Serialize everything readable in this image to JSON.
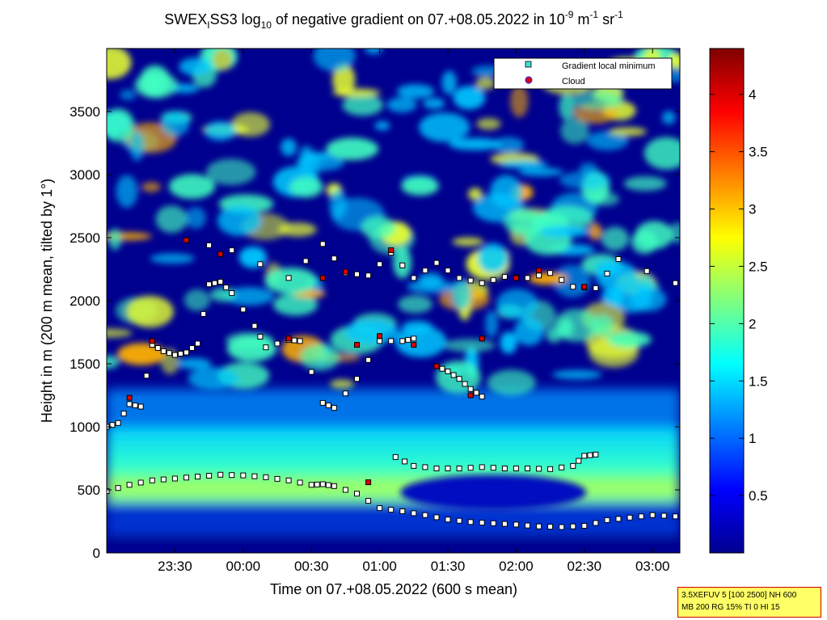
{
  "title": {
    "p1": "SWEX",
    "sub1": "I",
    "p2": "SS3 log",
    "sub2": "10",
    "p3": " of negative gradient on 07.+08.05.2022 in 10",
    "sup1": "-9",
    "p4": " m",
    "sup2": "-1",
    "p5": " sr",
    "sup3": "-1"
  },
  "xlabel": "Time on 07.+08.05.2022 (600 s mean)",
  "ylabel": "Height in m (200 m mean, tilted by 1°)",
  "legend": {
    "items": [
      {
        "label": "Gradient local minimum",
        "color": "#40e0d0"
      },
      {
        "label": "Cloud",
        "color": "#e00000"
      }
    ]
  },
  "info_box": {
    "line1": "3.5XEFUV 5 [100 2500] NH 600",
    "line2": "MB 200 RG 15% TI 0 HI 15"
  },
  "chart_data": {
    "type": "heatmap",
    "x_unit": "time (HH:MM)",
    "x_range": [
      "23:00",
      "03:12"
    ],
    "xticks": [
      {
        "label": "23:30",
        "t": "23:30"
      },
      {
        "label": "00:00",
        "t": "00:00"
      },
      {
        "label": "00:30",
        "t": "00:30"
      },
      {
        "label": "01:00",
        "t": "01:00"
      },
      {
        "label": "01:30",
        "t": "01:30"
      },
      {
        "label": "02:00",
        "t": "02:00"
      },
      {
        "label": "02:30",
        "t": "02:30"
      },
      {
        "label": "03:00",
        "t": "03:00"
      }
    ],
    "y_range": [
      0,
      4000
    ],
    "yticks": [
      0,
      500,
      1000,
      1500,
      2000,
      2500,
      3000,
      3500
    ],
    "ytick_labels": [
      "0",
      "500",
      "1000",
      "1500",
      "2000",
      "2500",
      "3000",
      "3500"
    ],
    "colorbar": {
      "range": [
        0,
        4.4
      ],
      "ticks": [
        0.5,
        1,
        1.5,
        2,
        2.5,
        3,
        3.5,
        4
      ],
      "tick_labels": [
        "0.5",
        "1",
        "1.5",
        "2",
        "2.5",
        "3",
        "3.5",
        "4"
      ],
      "colormap": "jet"
    },
    "gradient_minimum_series": [
      {
        "name": "lower-layer",
        "points": [
          [
            "23:00",
            490
          ],
          [
            "23:10",
            540
          ],
          [
            "23:20",
            575
          ],
          [
            "23:30",
            590
          ],
          [
            "23:40",
            605
          ],
          [
            "23:50",
            620
          ],
          [
            "00:00",
            615
          ],
          [
            "00:10",
            600
          ],
          [
            "00:20",
            575
          ],
          [
            "00:30",
            540
          ],
          [
            "00:35",
            545
          ],
          [
            "00:40",
            530
          ],
          [
            "00:50",
            470
          ],
          [
            "01:00",
            355
          ],
          [
            "01:10",
            330
          ],
          [
            "01:20",
            300
          ],
          [
            "01:30",
            265
          ],
          [
            "01:40",
            245
          ],
          [
            "01:50",
            235
          ],
          [
            "02:00",
            225
          ],
          [
            "02:10",
            210
          ],
          [
            "02:20",
            205
          ],
          [
            "02:30",
            215
          ],
          [
            "02:40",
            260
          ],
          [
            "02:50",
            280
          ],
          [
            "03:00",
            300
          ],
          [
            "03:10",
            290
          ]
        ]
      },
      {
        "name": "upper-layer",
        "points": [
          [
            "01:07",
            760
          ],
          [
            "01:15",
            690
          ],
          [
            "01:25",
            670
          ],
          [
            "01:35",
            670
          ],
          [
            "01:45",
            680
          ],
          [
            "01:55",
            670
          ],
          [
            "02:05",
            670
          ],
          [
            "02:15",
            665
          ],
          [
            "02:25",
            690
          ],
          [
            "02:30",
            770
          ],
          [
            "02:35",
            780
          ]
        ]
      },
      {
        "name": "descending-1",
        "points": [
          [
            "01:25",
            1480
          ],
          [
            "01:30",
            1440
          ],
          [
            "01:35",
            1380
          ],
          [
            "01:40",
            1300
          ],
          [
            "01:45",
            1240
          ]
        ]
      },
      {
        "name": "cluster-1600",
        "points": [
          [
            "23:00",
            1000
          ],
          [
            "23:05",
            1030
          ],
          [
            "23:10",
            1180
          ],
          [
            "23:15",
            1160
          ],
          [
            "23:20",
            1650
          ],
          [
            "23:25",
            1600
          ],
          [
            "23:30",
            1570
          ],
          [
            "23:35",
            1590
          ],
          [
            "23:40",
            1660
          ],
          [
            "23:45",
            2130
          ],
          [
            "23:50",
            2150
          ],
          [
            "23:55",
            2060
          ],
          [
            "00:05",
            1800
          ],
          [
            "00:10",
            1630
          ],
          [
            "00:20",
            1690
          ],
          [
            "00:25",
            1680
          ],
          [
            "00:35",
            1190
          ],
          [
            "00:40",
            1150
          ],
          [
            "00:50",
            1380
          ],
          [
            "01:00",
            1680
          ],
          [
            "01:10",
            1680
          ],
          [
            "01:15",
            1700
          ]
        ]
      },
      {
        "name": "cluster-2200",
        "points": [
          [
            "23:35",
            2480
          ],
          [
            "23:55",
            2400
          ],
          [
            "00:20",
            2180
          ],
          [
            "00:35",
            2450
          ],
          [
            "00:45",
            2220
          ],
          [
            "00:55",
            2200
          ],
          [
            "01:05",
            2380
          ],
          [
            "01:15",
            2180
          ],
          [
            "01:25",
            2300
          ],
          [
            "01:35",
            2180
          ],
          [
            "01:45",
            2140
          ],
          [
            "01:55",
            2190
          ],
          [
            "02:05",
            2180
          ],
          [
            "02:15",
            2220
          ],
          [
            "02:25",
            2110
          ],
          [
            "02:35",
            2100
          ],
          [
            "02:45",
            2330
          ],
          [
            "03:10",
            2140
          ]
        ]
      }
    ],
    "cloud_points": [
      [
        "23:10",
        1230
      ],
      [
        "23:20",
        1680
      ],
      [
        "23:35",
        2480
      ],
      [
        "23:50",
        2370
      ],
      [
        "00:20",
        1700
      ],
      [
        "00:35",
        2180
      ],
      [
        "00:45",
        2230
      ],
      [
        "00:50",
        1650
      ],
      [
        "01:00",
        1720
      ],
      [
        "01:05",
        2400
      ],
      [
        "01:15",
        1650
      ],
      [
        "01:25",
        1480
      ],
      [
        "01:40",
        1250
      ],
      [
        "01:45",
        1700
      ],
      [
        "02:00",
        2180
      ],
      [
        "02:10",
        2240
      ],
      [
        "02:30",
        2110
      ],
      [
        "00:55",
        560
      ]
    ]
  }
}
